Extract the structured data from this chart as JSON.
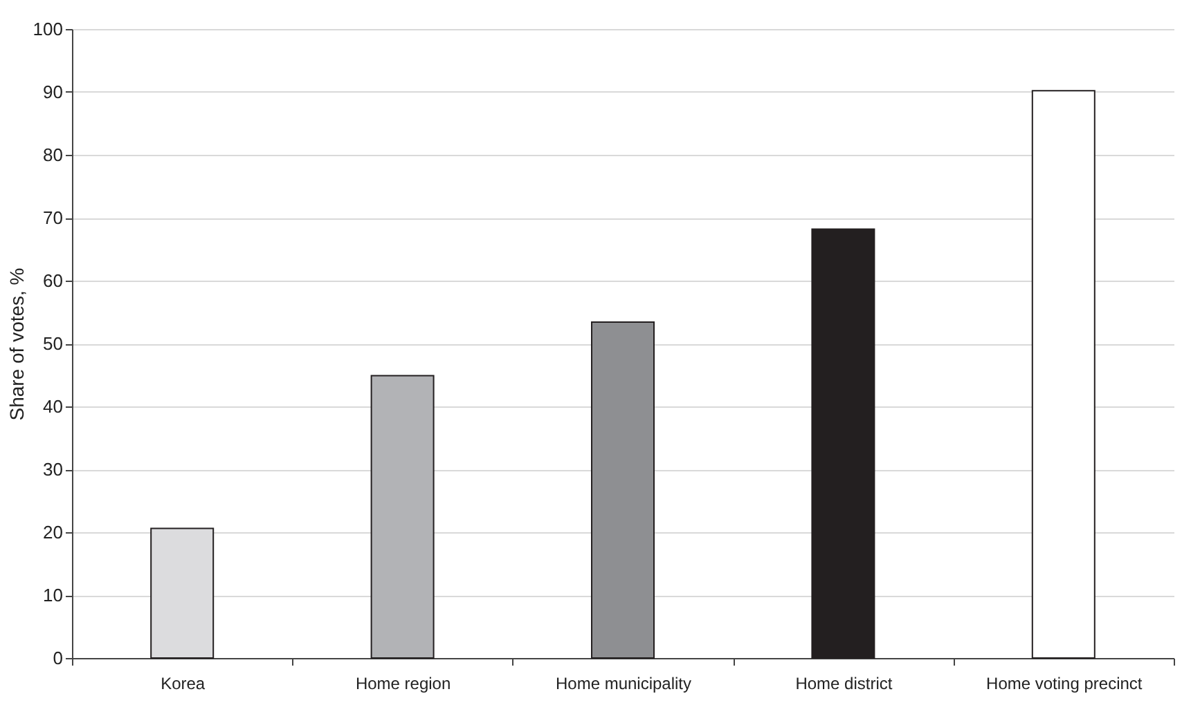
{
  "chart_data": {
    "type": "bar",
    "ylabel": "Share of votes, %",
    "categories": [
      "Korea",
      "Home region",
      "Home municipality",
      "Home district",
      "Home voting precinct"
    ],
    "values": [
      20.6,
      44.9,
      53.4,
      68.2,
      90.2
    ],
    "colors": [
      "#dcdcde",
      "#b2b3b6",
      "#8e8f92",
      "#231f20",
      "#ffffff"
    ],
    "ylim": [
      0,
      100
    ],
    "yticks": [
      0,
      10,
      20,
      30,
      40,
      50,
      60,
      70,
      80,
      90,
      100
    ],
    "grid": "y"
  }
}
